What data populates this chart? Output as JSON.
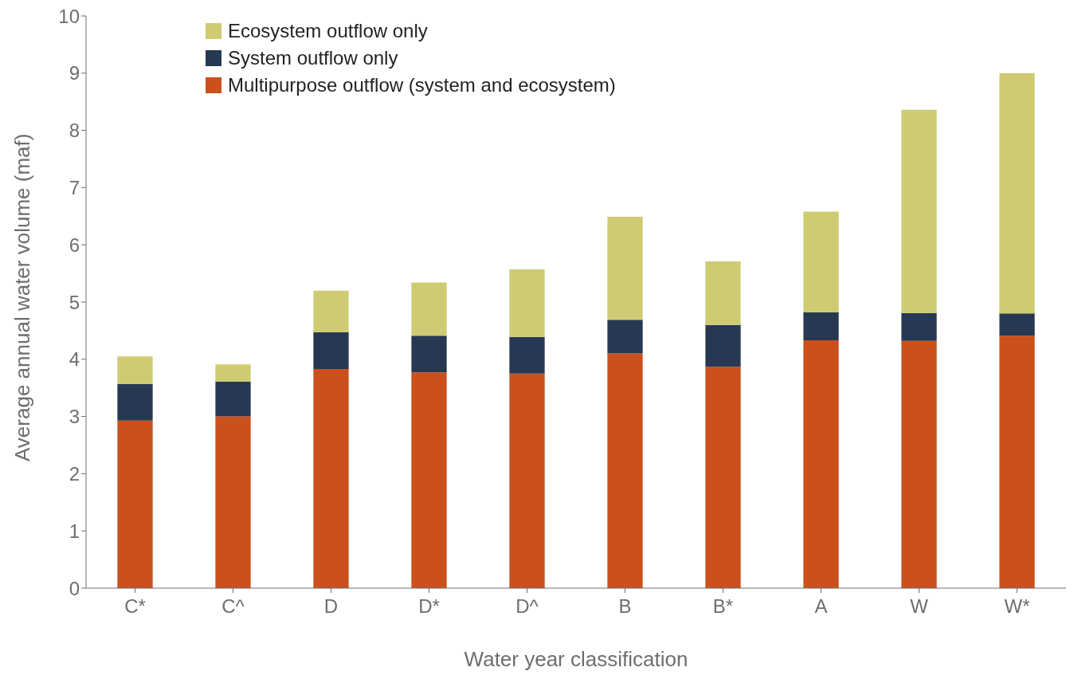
{
  "chart_data": {
    "type": "bar",
    "stacked": true,
    "xlabel": "Water year classification",
    "ylabel": "Average annual water volume (maf)",
    "categories": [
      "C*",
      "C^",
      "D",
      "D*",
      "D^",
      "B",
      "B*",
      "A",
      "W",
      "W*"
    ],
    "series": [
      {
        "name": "Multipurpose outflow (system and ecosystem)",
        "color": "#cc501c",
        "values": [
          2.93,
          3.0,
          3.83,
          3.77,
          3.75,
          4.1,
          3.87,
          4.33,
          4.32,
          4.41
        ]
      },
      {
        "name": "System outflow only",
        "color": "#263852",
        "values": [
          0.64,
          0.61,
          0.64,
          0.64,
          0.64,
          0.59,
          0.73,
          0.49,
          0.49,
          0.39
        ]
      },
      {
        "name": "Ecosystem outflow only",
        "color": "#cfcb72",
        "values": [
          0.48,
          0.3,
          0.73,
          0.93,
          1.18,
          1.8,
          1.11,
          1.76,
          3.55,
          4.2
        ]
      }
    ],
    "ylim": [
      0,
      10
    ],
    "yticks": [
      0,
      1,
      2,
      3,
      4,
      5,
      6,
      7,
      8,
      9,
      10
    ],
    "grid": false,
    "legend": "top left"
  }
}
